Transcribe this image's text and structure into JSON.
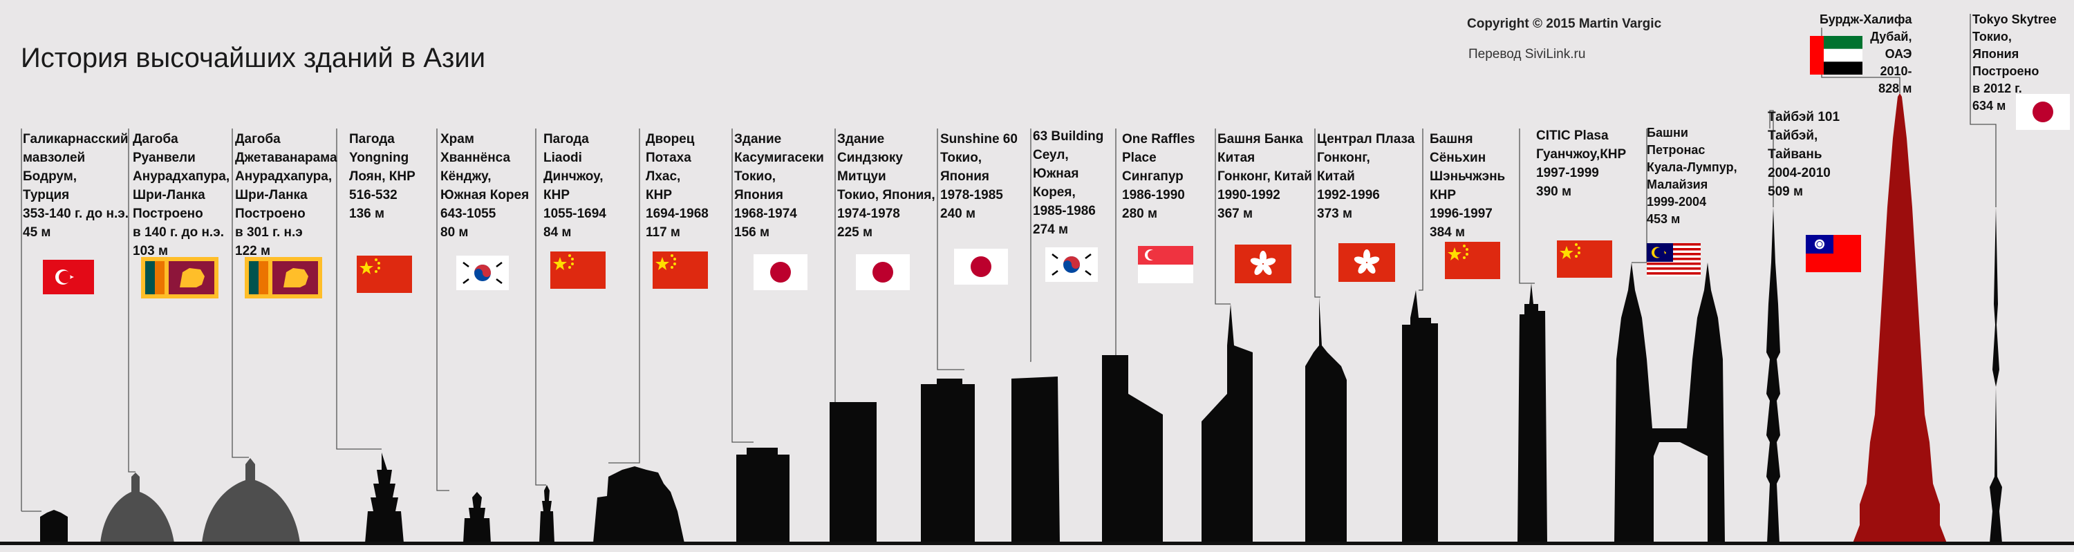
{
  "header": {
    "title": "История высочайших зданий в Азии",
    "copyright": "Copyright © 2015 Martin Vargic",
    "translation": "Перевод SiviLink.ru"
  },
  "buildings": [
    {
      "id": "mausoleum",
      "lines": [
        "Галикарнасский",
        "мавзолей",
        "Бодрум,",
        "Турция",
        "353-140 г. до н.э.",
        "45 м"
      ],
      "flag": "turkey",
      "height_m": 45
    },
    {
      "id": "ruwanweli",
      "lines": [
        "Дагоба",
        "Руанвели",
        "Анурадхапура,",
        "Шри-Ланка",
        "Построено",
        "в 140 г. до н.э.",
        "103 м"
      ],
      "flag": "srilanka",
      "height_m": 103
    },
    {
      "id": "jetavanarama",
      "lines": [
        "Дагоба",
        "Джетаванарама",
        "Анурадхапура,",
        "Шри-Ланка",
        "Построено",
        "в 301 г. н.э",
        "122 м"
      ],
      "flag": "srilanka",
      "height_m": 122
    },
    {
      "id": "yongning",
      "lines": [
        "Пагода",
        "Yongning",
        "Лоян, КНР",
        "516-532",
        "136 м"
      ],
      "flag": "china",
      "height_m": 136
    },
    {
      "id": "hwangnyongsa",
      "lines": [
        "Храм",
        "Хваннёнса",
        "Кёнджу,",
        "Южная Корея",
        "643-1055",
        "80 м"
      ],
      "flag": "korea",
      "height_m": 80
    },
    {
      "id": "liaodi",
      "lines": [
        "Пагода",
        "Liaodi",
        "Динчжоу,",
        "КНР",
        "1055-1694",
        "84 м"
      ],
      "flag": "china",
      "height_m": 84
    },
    {
      "id": "potala",
      "lines": [
        "Дворец",
        "Потаха",
        "Лхас,",
        "КНР",
        "1694-1968",
        "117 м"
      ],
      "flag": "china",
      "height_m": 117
    },
    {
      "id": "kasumigaseki",
      "lines": [
        "Здание",
        "Касумигасеки",
        "Токио,",
        "Япония",
        "1968-1974",
        "156 м"
      ],
      "flag": "japan",
      "height_m": 156
    },
    {
      "id": "shinjuku-mitsui",
      "lines": [
        "Здание",
        "Синдзюку",
        "Митцуи",
        "Токио, Япония,",
        "1974-1978",
        "225 м"
      ],
      "flag": "japan",
      "height_m": 225
    },
    {
      "id": "sunshine60",
      "lines": [
        "Sunshine 60",
        "Токио,",
        "Япония",
        "1978-1985",
        "240 м"
      ],
      "flag": "japan",
      "height_m": 240
    },
    {
      "id": "63building",
      "lines": [
        "63 Building",
        "Сеул,",
        "Южная",
        "Корея,",
        "1985-1986",
        "274 м"
      ],
      "flag": "korea",
      "height_m": 274
    },
    {
      "id": "oneraffles",
      "lines": [
        "One Raffles",
        "Place",
        "Сингапур",
        "1986-1990",
        "280 м"
      ],
      "flag": "singapore",
      "height_m": 280
    },
    {
      "id": "bankofchina",
      "lines": [
        "Башня Банка",
        "Китая",
        "Гонконг, Китай",
        "1990-1992",
        "367 м"
      ],
      "flag": "hongkong",
      "height_m": 367
    },
    {
      "id": "centralplaza",
      "lines": [
        "Централ Плаза",
        "Гонконг,",
        "Китай",
        "1992-1996",
        "373 м"
      ],
      "flag": "hongkong",
      "height_m": 373
    },
    {
      "id": "shunhing",
      "lines": [
        "Башня",
        "Сёньхин",
        "Шэньчжэнь",
        "КНР",
        "1996-1997",
        "384 м"
      ],
      "flag": "china",
      "height_m": 384
    },
    {
      "id": "citicplaza",
      "lines": [
        "CITIC Plasa",
        "Гуанчжоу,КНР",
        "1997-1999",
        "390 м"
      ],
      "flag": "china",
      "height_m": 390
    },
    {
      "id": "petronas",
      "lines": [
        "Башни",
        "Петронас",
        "Куала-Лумпур,",
        "Малайзия",
        "1999-2004",
        "453 м"
      ],
      "flag": "malaysia",
      "height_m": 453
    },
    {
      "id": "taipei101",
      "lines": [
        "Тайбэй 101",
        "Тайбэй,",
        "Тайвань",
        "2004-2010",
        "509 м"
      ],
      "flag": "taiwan",
      "height_m": 509
    },
    {
      "id": "burjkhalifa",
      "lines": [
        "Бурдж-Халифа",
        "Дубай,",
        "ОАЭ",
        "2010-",
        "828 м"
      ],
      "flag": "uae",
      "height_m": 828
    },
    {
      "id": "skytree",
      "lines": [
        "Tokyo Skytree",
        "Токио,",
        "Япония",
        "Построено",
        "в 2012 г.",
        "634 м"
      ],
      "flag": "japan",
      "height_m": 634
    }
  ],
  "colors": {
    "background": "#e9e7e8",
    "silhouette": "#0a0a0a",
    "burj": "#9c0d0d",
    "ground": "#111111"
  }
}
